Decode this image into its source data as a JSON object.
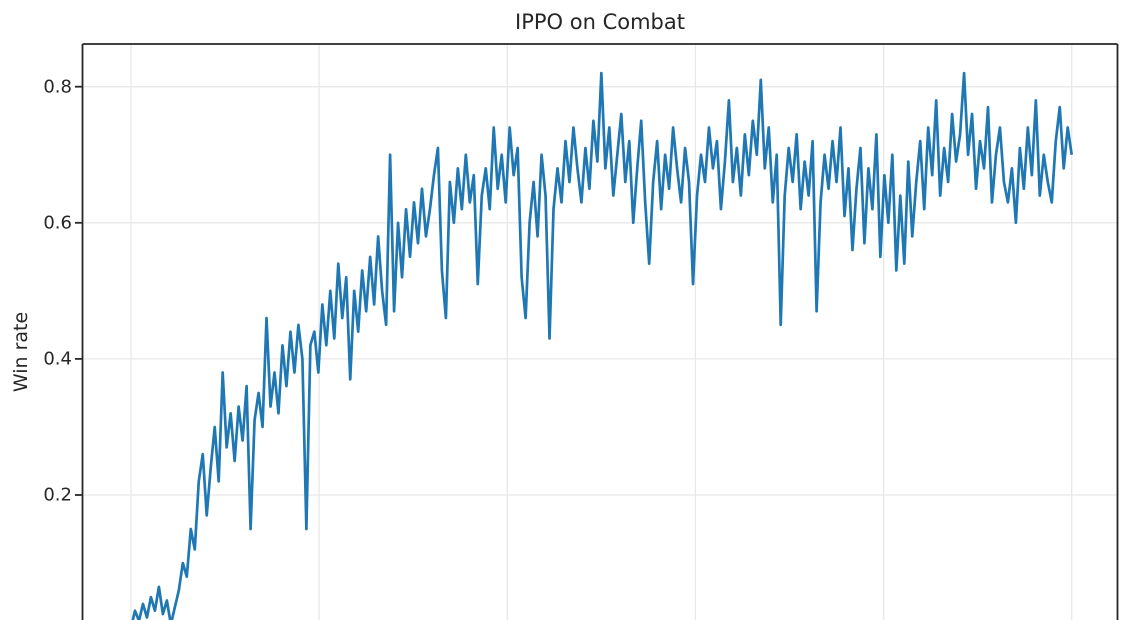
{
  "figure": {
    "background_color": "#ffffff",
    "line_color": "#1f77b4",
    "grid_color": "#e8e8e8",
    "spine_color": "#262626",
    "text_color": "#262626"
  },
  "chart_data": {
    "type": "line",
    "title": "IPPO on Combat",
    "xlabel": "",
    "ylabel": "Win rate",
    "yticks": [
      0.2,
      0.4,
      0.6,
      0.8
    ],
    "ytick_labels": [
      "0.2",
      "0.4",
      "0.6",
      "0.8"
    ],
    "ylim": [
      -0.02,
      0.86
    ],
    "grid": true,
    "legend": "none",
    "x_tick_labels_visible": false,
    "x_gridline_count": 6,
    "series": [
      {
        "name": "Win rate",
        "color": "#1f77b4",
        "values": [
          0.005,
          0.03,
          0.015,
          0.04,
          0.02,
          0.05,
          0.03,
          0.065,
          0.025,
          0.045,
          0.01,
          0.035,
          0.06,
          0.1,
          0.08,
          0.15,
          0.12,
          0.22,
          0.26,
          0.17,
          0.24,
          0.3,
          0.22,
          0.38,
          0.27,
          0.32,
          0.25,
          0.33,
          0.28,
          0.36,
          0.15,
          0.31,
          0.35,
          0.3,
          0.46,
          0.33,
          0.38,
          0.32,
          0.42,
          0.36,
          0.44,
          0.38,
          0.45,
          0.4,
          0.15,
          0.42,
          0.44,
          0.38,
          0.48,
          0.42,
          0.5,
          0.43,
          0.54,
          0.46,
          0.52,
          0.37,
          0.5,
          0.44,
          0.53,
          0.47,
          0.55,
          0.48,
          0.58,
          0.5,
          0.45,
          0.7,
          0.47,
          0.6,
          0.52,
          0.62,
          0.55,
          0.63,
          0.57,
          0.65,
          0.58,
          0.62,
          0.67,
          0.71,
          0.53,
          0.46,
          0.66,
          0.6,
          0.68,
          0.62,
          0.7,
          0.63,
          0.67,
          0.51,
          0.64,
          0.68,
          0.62,
          0.74,
          0.65,
          0.7,
          0.63,
          0.74,
          0.67,
          0.71,
          0.52,
          0.46,
          0.6,
          0.66,
          0.58,
          0.7,
          0.64,
          0.43,
          0.62,
          0.68,
          0.63,
          0.72,
          0.66,
          0.74,
          0.68,
          0.63,
          0.71,
          0.65,
          0.75,
          0.69,
          0.82,
          0.68,
          0.74,
          0.64,
          0.7,
          0.76,
          0.66,
          0.72,
          0.6,
          0.68,
          0.75,
          0.63,
          0.54,
          0.66,
          0.72,
          0.62,
          0.7,
          0.65,
          0.74,
          0.68,
          0.63,
          0.71,
          0.66,
          0.51,
          0.64,
          0.7,
          0.66,
          0.74,
          0.68,
          0.72,
          0.62,
          0.69,
          0.78,
          0.66,
          0.71,
          0.64,
          0.73,
          0.67,
          0.75,
          0.7,
          0.81,
          0.68,
          0.74,
          0.63,
          0.7,
          0.45,
          0.64,
          0.71,
          0.66,
          0.73,
          0.62,
          0.69,
          0.64,
          0.72,
          0.47,
          0.63,
          0.7,
          0.65,
          0.72,
          0.66,
          0.74,
          0.61,
          0.68,
          0.56,
          0.65,
          0.71,
          0.57,
          0.68,
          0.62,
          0.73,
          0.55,
          0.67,
          0.6,
          0.7,
          0.53,
          0.64,
          0.54,
          0.69,
          0.58,
          0.66,
          0.72,
          0.62,
          0.74,
          0.67,
          0.78,
          0.64,
          0.71,
          0.66,
          0.76,
          0.69,
          0.73,
          0.82,
          0.7,
          0.76,
          0.65,
          0.72,
          0.68,
          0.77,
          0.63,
          0.7,
          0.74,
          0.66,
          0.63,
          0.68,
          0.6,
          0.71,
          0.65,
          0.74,
          0.67,
          0.78,
          0.64,
          0.7,
          0.66,
          0.63,
          0.72,
          0.77,
          0.68,
          0.74,
          0.7
        ]
      }
    ]
  }
}
